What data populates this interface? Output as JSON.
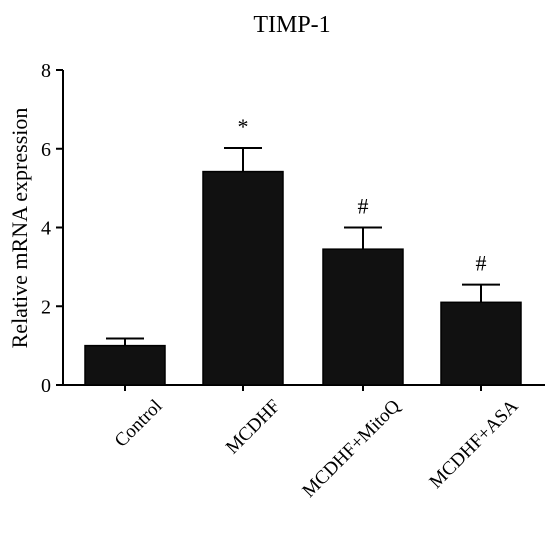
{
  "chart_data": {
    "type": "bar",
    "title": "TIMP-1",
    "xlabel": "",
    "ylabel": "Relative mRNA expression",
    "ylim": [
      0,
      8
    ],
    "yticks": [
      0,
      2,
      4,
      6,
      8
    ],
    "grid": false,
    "categories": [
      "Control",
      "MCDHF",
      "MCDHF+MitoQ",
      "MCDHF+ASA"
    ],
    "values": [
      1.0,
      5.42,
      3.45,
      2.1
    ],
    "error_upper": [
      0.18,
      0.6,
      0.55,
      0.45
    ],
    "annotations": [
      "",
      "*",
      "#",
      "#"
    ],
    "bar_color": "#111111"
  }
}
